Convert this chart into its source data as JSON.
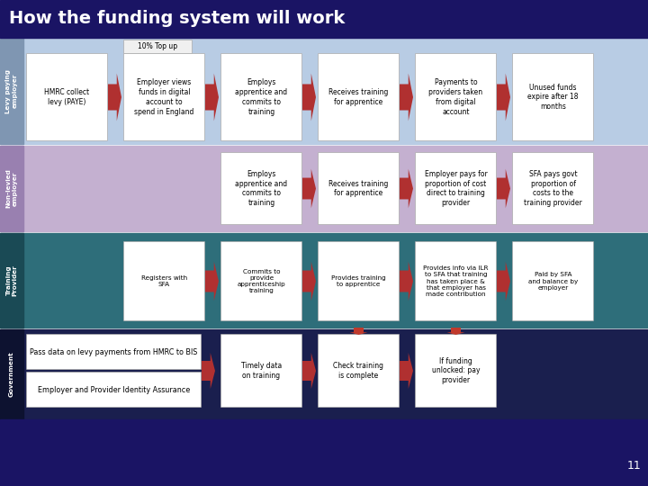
{
  "title": "How the funding system will work",
  "title_bg": "#1a1464",
  "title_color": "#ffffff",
  "title_fontsize": 14,
  "row1_bg": "#b8cce4",
  "row1_label_bg": "#7f96b2",
  "row1_label": "Levy paying\nemployer",
  "row2_bg": "#c4b0d0",
  "row2_label_bg": "#9980b0",
  "row2_label": "Non-levied\nemployer",
  "row3_bg": "#2e6e7a",
  "row3_label_bg": "#1a4a55",
  "row3_label": "Training\nProvider",
  "row4_bg": "#1a1f4e",
  "row4_label_bg": "#0d1230",
  "row4_label": "Government",
  "footer_bg": "#1a1464",
  "box_bg": "#ffffff",
  "box_edge": "#aaaaaa",
  "arrow_color": "#b03030",
  "arrow_color2": "#c0392b",
  "topup_label": "10% Top up",
  "topup_bg": "#f0f0f0",
  "row1_boxes": [
    "HMRC collect\nlevy (PAYE)",
    "Employer views\nfunds in digital\naccount to\nspend in England",
    "Employs\napprentice and\ncommits to\ntraining",
    "Receives training\nfor apprentice",
    "Payments to\nproviders taken\nfrom digital\naccount",
    "Unused funds\nexpire after 18\nmonths"
  ],
  "row2_boxes": [
    "Employs\napprentice and\ncommits to\ntraining",
    "Receives training\nfor apprentice",
    "Employer pays for\nproportion of cost\ndirect to training\nprovider",
    "SFA pays govt\nproportion of\ncosts to the\ntraining provider"
  ],
  "row3_boxes": [
    "Registers with\nSFA",
    "Commits to\nprovide\napprenticeship\ntraining",
    "Provides training\nto apprentice",
    "Provides info via ILR\nto SFA that training\nhas taken place &\nthat employer has\nmade contribution",
    "Paid by SFA\nand balance by\nemployer"
  ],
  "row4_wide_boxes": [
    "Pass data on levy payments from HMRC to BIS",
    "Employer and Provider Identity Assurance"
  ],
  "row4_boxes": [
    "Timely data\non training",
    "Check training\nis complete",
    "If funding\nunlocked: pay\nprovider"
  ],
  "page_num": "11"
}
